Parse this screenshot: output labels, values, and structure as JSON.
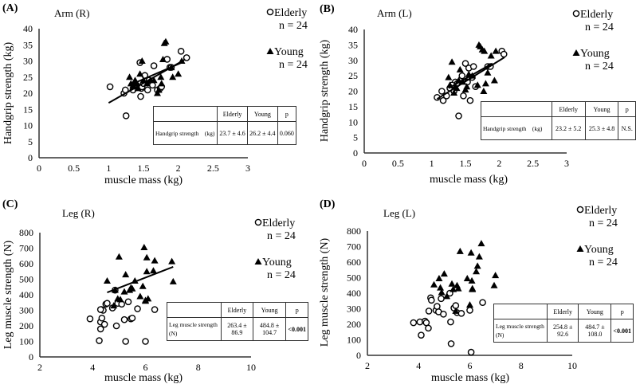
{
  "chart_data": [
    {
      "panel_label": "(A)",
      "type": "scatter",
      "title": "Arm (R)",
      "xlabel": "muscle mass (kg)",
      "ylabel": "Handgrip strength (kg)",
      "xlim": [
        0,
        3
      ],
      "ylim": [
        0,
        40
      ],
      "xticks": [
        "0",
        "0.5",
        "1",
        "1.5",
        "2",
        "2.5",
        "3"
      ],
      "yticks": [
        "0",
        "5",
        "10",
        "15",
        "20",
        "25",
        "30",
        "35",
        "40"
      ],
      "grid": false,
      "legend": [
        {
          "marker": "circle",
          "label": "Elderly",
          "n": "n = 24"
        },
        {
          "marker": "triangle",
          "label": "Young",
          "n": "n = 24"
        }
      ],
      "series": [
        {
          "name": "Elderly",
          "marker": "open-circle",
          "x": [
            1.02,
            1.22,
            1.24,
            1.25,
            1.35,
            1.45,
            1.46,
            1.47,
            1.48,
            1.5,
            1.52,
            1.56,
            1.63,
            1.65,
            1.7,
            1.74,
            1.76,
            1.84,
            1.88,
            1.9,
            2.04,
            2.12,
            1.4,
            1.58
          ],
          "y": [
            22,
            20,
            21,
            13,
            21,
            29.5,
            19,
            21.5,
            22,
            23,
            25.5,
            21,
            22.5,
            28.5,
            21,
            21.5,
            22,
            30.5,
            28,
            28,
            33,
            31,
            22.5,
            24
          ]
        },
        {
          "name": "Young",
          "marker": "filled-triangle",
          "x": [
            1.3,
            1.32,
            1.35,
            1.38,
            1.4,
            1.45,
            1.48,
            1.5,
            1.55,
            1.6,
            1.65,
            1.7,
            1.72,
            1.75,
            1.76,
            1.78,
            1.8,
            1.82,
            1.9,
            1.92,
            2.0,
            2.05,
            1.42,
            1.36
          ],
          "y": [
            25,
            23,
            22.5,
            24,
            23,
            26,
            30,
            24,
            23,
            24,
            24,
            20,
            21,
            25,
            23,
            30.5,
            35.5,
            36,
            28,
            25,
            26,
            30,
            21.5,
            22
          ]
        }
      ],
      "trendlines": [
        {
          "series": "Elderly",
          "x": [
            1.0,
            2.1
          ],
          "y": [
            17,
            30.5
          ]
        },
        {
          "series": "Young",
          "x": [
            1.3,
            2.05
          ],
          "y": [
            22.5,
            29.5
          ]
        }
      ],
      "table": {
        "headers": [
          "",
          "Elderly",
          "Young",
          "p"
        ],
        "row_label": "Handgrip strength　(kg)",
        "values": [
          "23.7 ± 4.6",
          "26.2 ± 4.4",
          "0.060"
        ]
      }
    },
    {
      "panel_label": "(B)",
      "type": "scatter",
      "title": "Arm (L)",
      "xlabel": "muscle mass (kg)",
      "ylabel": "Handgrip strength (kg)",
      "xlim": [
        0,
        3
      ],
      "ylim": [
        0,
        40
      ],
      "xticks": [
        "0",
        "0.5",
        "1",
        "1.5",
        "2",
        "2.5",
        "3"
      ],
      "yticks": [
        "0",
        "5",
        "10",
        "15",
        "20",
        "25",
        "30",
        "35",
        "40"
      ],
      "grid": false,
      "legend": [
        {
          "marker": "circle",
          "label": "Elderly",
          "n": "n = 24"
        },
        {
          "marker": "triangle",
          "label": "Young",
          "n": "n = 24"
        }
      ],
      "series": [
        {
          "name": "Elderly",
          "marker": "open-circle",
          "x": [
            1.08,
            1.15,
            1.17,
            1.22,
            1.27,
            1.33,
            1.35,
            1.4,
            1.43,
            1.45,
            1.47,
            1.5,
            1.53,
            1.55,
            1.57,
            1.6,
            1.62,
            1.65,
            1.83,
            1.87,
            2.04,
            2.07,
            1.3,
            1.38
          ],
          "y": [
            18,
            20,
            17,
            18.5,
            21,
            20,
            23,
            12,
            23.5,
            25,
            18.5,
            29,
            23,
            27.5,
            17,
            24.5,
            28,
            21.5,
            28,
            28,
            33,
            32,
            22,
            22.5
          ]
        },
        {
          "name": "Young",
          "marker": "filled-triangle",
          "x": [
            1.25,
            1.27,
            1.3,
            1.33,
            1.37,
            1.4,
            1.42,
            1.45,
            1.5,
            1.52,
            1.6,
            1.68,
            1.7,
            1.72,
            1.75,
            1.77,
            1.78,
            1.8,
            1.83,
            1.88,
            1.93,
            1.95,
            1.55,
            1.35
          ],
          "y": [
            24.5,
            22,
            29.5,
            19.5,
            21,
            23.5,
            27,
            23,
            20.5,
            21.5,
            25,
            22,
            35,
            34.5,
            33.5,
            20,
            33,
            22.5,
            26,
            31.5,
            23.5,
            33,
            25.5,
            21.5
          ]
        }
      ],
      "trendlines": [
        {
          "series": "Elderly",
          "x": [
            1.08,
            2.08
          ],
          "y": [
            17.5,
            31
          ]
        },
        {
          "series": "Young",
          "x": [
            1.25,
            1.9
          ],
          "y": [
            21,
            29
          ]
        }
      ],
      "table": {
        "headers": [
          "",
          "Elderly",
          "Young",
          "p"
        ],
        "row_label": "Handgrip strength　(kg)",
        "values": [
          "23.2 ± 5.2",
          "25.3 ± 4.8",
          "N.S."
        ]
      }
    },
    {
      "panel_label": "(C)",
      "type": "scatter",
      "title": "Leg (R)",
      "xlabel": "muscle mass (kg)",
      "ylabel": "Leg muscle strength (N)",
      "xlim": [
        2,
        10
      ],
      "ylim": [
        0,
        800
      ],
      "xticks": [
        "2",
        "4",
        "6",
        "8",
        "10"
      ],
      "yticks": [
        "0",
        "100",
        "200",
        "300",
        "400",
        "500",
        "600",
        "700",
        "800"
      ],
      "grid": false,
      "legend": [
        {
          "marker": "circle",
          "label": "Elderly",
          "n": "n = 24"
        },
        {
          "marker": "triangle",
          "label": "Young",
          "n": "n = 24"
        }
      ],
      "series": [
        {
          "name": "Elderly",
          "marker": "open-circle",
          "x": [
            3.9,
            4.25,
            4.3,
            4.3,
            4.33,
            4.35,
            4.4,
            4.45,
            4.5,
            4.55,
            4.75,
            4.9,
            4.95,
            5.1,
            5.2,
            5.25,
            5.35,
            5.45,
            5.5,
            5.7,
            6.0,
            6.35,
            4.85,
            4.3
          ],
          "y": [
            245,
            105,
            180,
            225,
            305,
            250,
            300,
            210,
            340,
            345,
            315,
            200,
            345,
            340,
            240,
            100,
            355,
            245,
            250,
            310,
            100,
            305,
            430,
            305
          ]
        },
        {
          "name": "Young",
          "marker": "filled-triangle",
          "x": [
            4.55,
            4.8,
            4.95,
            5.0,
            5.05,
            5.2,
            5.25,
            5.4,
            5.45,
            5.6,
            5.8,
            5.9,
            5.95,
            6.0,
            6.05,
            6.05,
            6.1,
            6.3,
            6.35,
            7.0,
            7.05,
            4.85,
            5.5,
            6.0
          ],
          "y": [
            490,
            330,
            375,
            645,
            370,
            420,
            530,
            430,
            445,
            490,
            390,
            455,
            705,
            365,
            640,
            550,
            375,
            555,
            620,
            615,
            485,
            430,
            440,
            360
          ]
        }
      ],
      "trendlines": [
        {
          "series": "Young",
          "x": [
            4.55,
            7.05
          ],
          "y": [
            415,
            580
          ]
        }
      ],
      "table": {
        "headers": [
          "",
          "Elderly",
          "Young",
          "p"
        ],
        "row_label": "Leg muscle strength　(N)",
        "values": [
          "263.4 ± 86.9",
          "484.8 ± 104.7",
          "<0.001"
        ]
      }
    },
    {
      "panel_label": "(D)",
      "type": "scatter",
      "title": "Leg (L)",
      "xlabel": "muscle mass (kg)",
      "ylabel": "Leg muscle strength (N)",
      "xlim": [
        2,
        10
      ],
      "ylim": [
        0,
        800
      ],
      "xticks": [
        "2",
        "4",
        "6",
        "8",
        "10"
      ],
      "yticks": [
        "0",
        "100",
        "200",
        "300",
        "400",
        "500",
        "600",
        "700",
        "800"
      ],
      "grid": false,
      "legend": [
        {
          "marker": "circle",
          "label": "Elderly",
          "n": "n = 24"
        },
        {
          "marker": "triangle",
          "label": "Young",
          "n": "n = 24"
        }
      ],
      "series": [
        {
          "name": "Elderly",
          "marker": "open-circle",
          "x": [
            3.8,
            4.05,
            4.1,
            4.25,
            4.3,
            4.38,
            4.4,
            4.47,
            4.5,
            4.68,
            4.72,
            4.78,
            4.88,
            4.97,
            5.22,
            5.25,
            5.27,
            5.38,
            5.45,
            5.5,
            5.67,
            6.0,
            6.05,
            6.5
          ],
          "y": [
            210,
            215,
            130,
            220,
            210,
            175,
            285,
            370,
            355,
            290,
            315,
            280,
            365,
            265,
            400,
            215,
            75,
            305,
            320,
            275,
            270,
            290,
            20,
            340
          ]
        },
        {
          "name": "Young",
          "marker": "filled-triangle",
          "x": [
            4.6,
            4.8,
            4.85,
            4.9,
            5.0,
            5.1,
            5.3,
            5.35,
            5.45,
            5.5,
            5.55,
            5.62,
            5.9,
            6.0,
            6.05,
            6.08,
            6.1,
            6.1,
            6.25,
            6.3,
            6.37,
            6.45,
            6.95,
            7.0
          ],
          "y": [
            455,
            495,
            435,
            405,
            525,
            380,
            460,
            425,
            285,
            450,
            430,
            670,
            495,
            325,
            660,
            480,
            430,
            425,
            540,
            575,
            635,
            720,
            450,
            515
          ]
        }
      ],
      "trendlines": [],
      "table": {
        "headers": [
          "",
          "Elderly",
          "Young",
          "p"
        ],
        "row_label": "Leg muscle strength　(N)",
        "values": [
          "254.8 ± 92.6",
          "484.7 ± 108.0",
          "<0.001"
        ]
      }
    }
  ]
}
